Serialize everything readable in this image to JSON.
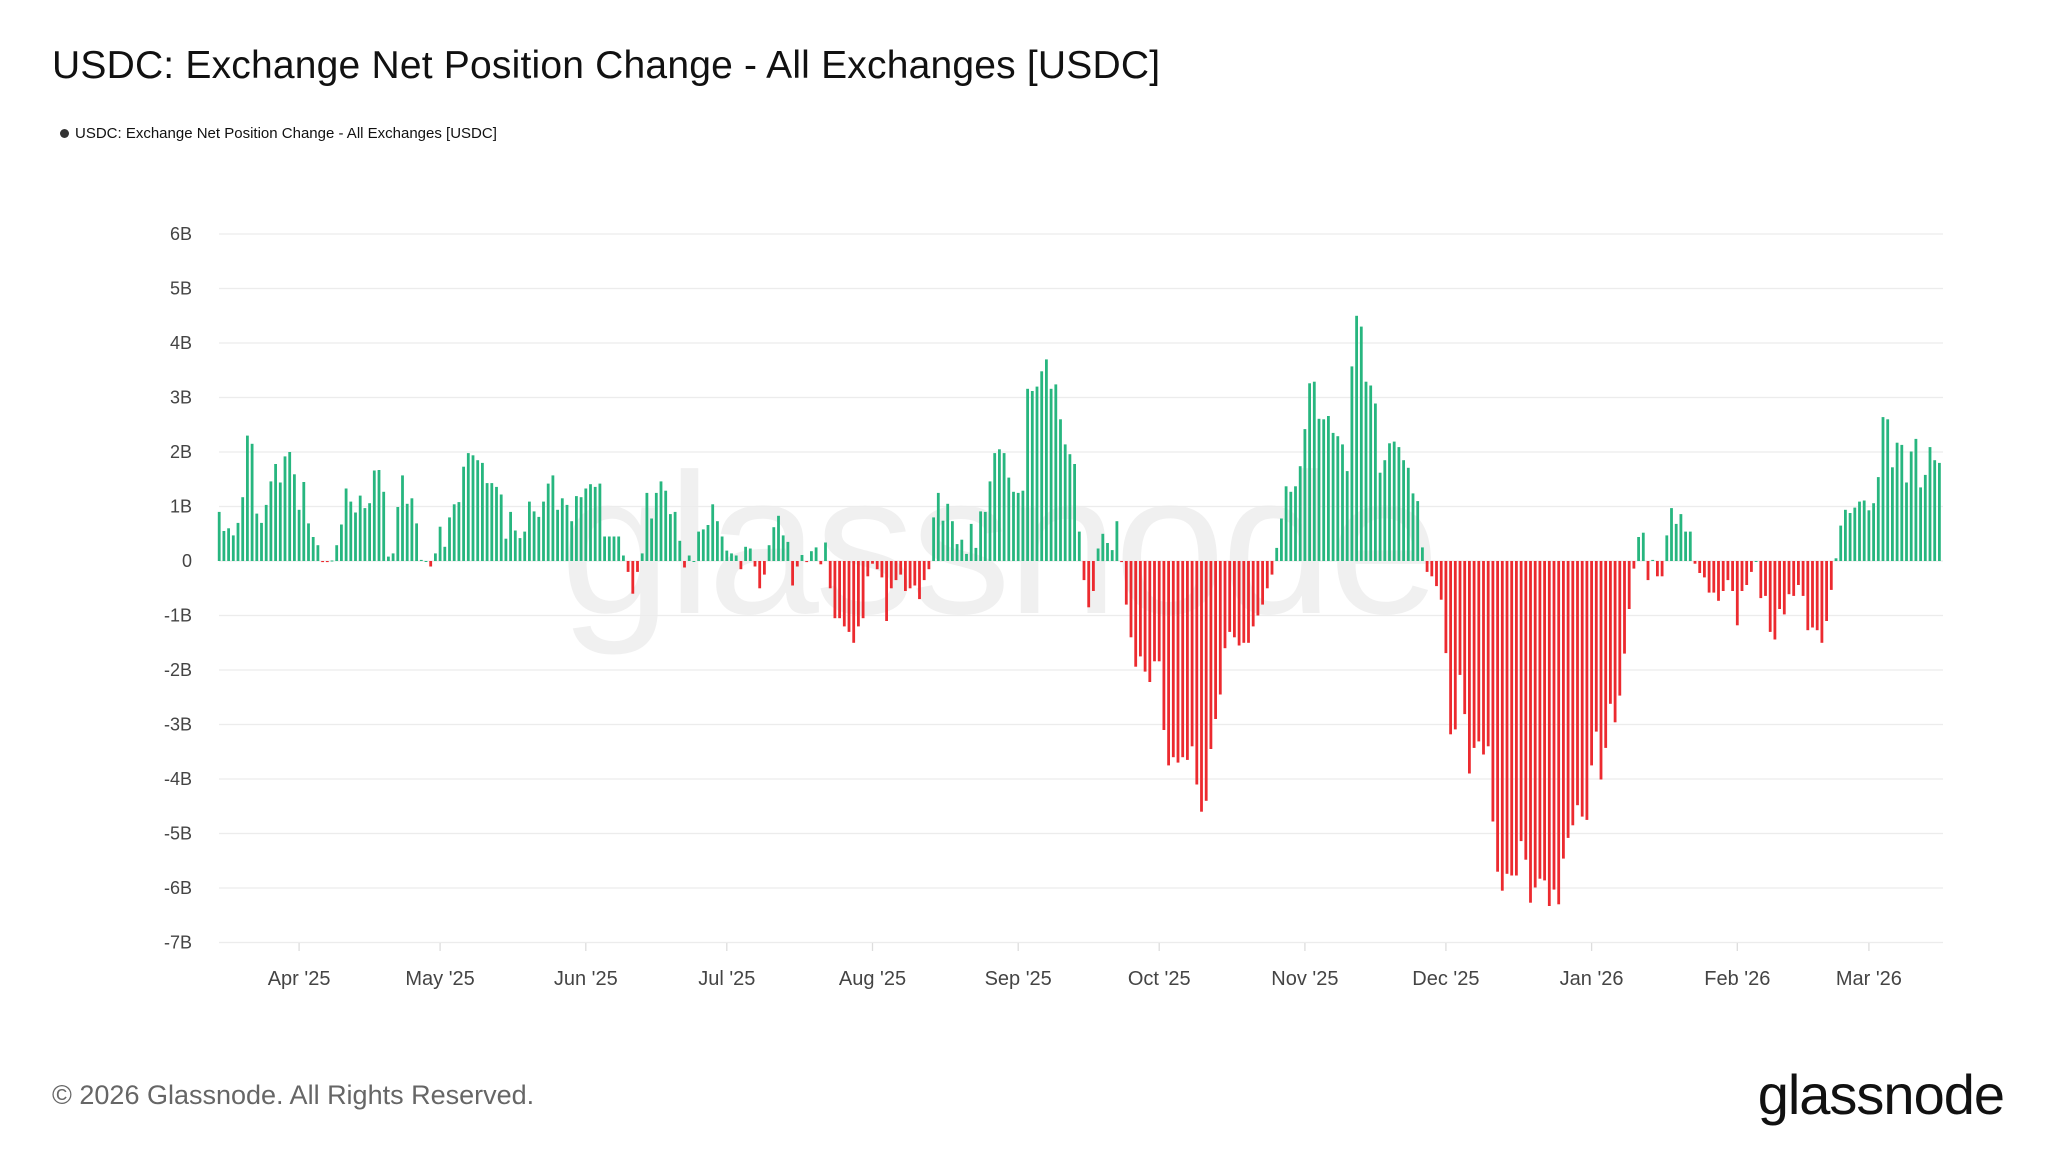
{
  "title": "USDC: Exchange Net Position Change - All Exchanges [USDC]",
  "legend": {
    "label": "USDC: Exchange Net Position Change - All Exchanges [USDC]",
    "dot_color": "#333333"
  },
  "watermark": "glassnode",
  "footer": {
    "copyright": "© 2026 Glassnode. All Rights Reserved.",
    "logo": "glassnode"
  },
  "colors": {
    "positive": "#27b67f",
    "negative": "#ec2a2f",
    "grid": "#ececec"
  },
  "chart_data": {
    "type": "bar",
    "title": "USDC: Exchange Net Position Change - All Exchanges [USDC]",
    "xlabel": "",
    "ylabel": "",
    "ylim": [
      -7,
      6
    ],
    "y_unit": "B",
    "grid": true,
    "legend_position": "top-left",
    "y_ticks": [
      "6B",
      "5B",
      "4B",
      "3B",
      "2B",
      "1B",
      "0",
      "-1B",
      "-2B",
      "-3B",
      "-4B",
      "-5B",
      "-6B",
      "-7B"
    ],
    "y_tick_values": [
      6,
      5,
      4,
      3,
      2,
      1,
      0,
      -1,
      -2,
      -3,
      -4,
      -5,
      -6,
      -7
    ],
    "x_ticks": [
      "Apr '25",
      "May '25",
      "Jun '25",
      "Jul '25",
      "Aug '25",
      "Sep '25",
      "Oct '25",
      "Nov '25",
      "Dec '25",
      "Jan '26",
      "Feb '26",
      "Mar '26"
    ],
    "x_tick_dates": [
      "2025-04-01",
      "2025-05-01",
      "2025-06-01",
      "2025-07-01",
      "2025-08-01",
      "2025-09-01",
      "2025-10-01",
      "2025-11-01",
      "2025-12-01",
      "2026-01-01",
      "2026-02-01",
      "2026-03-01"
    ],
    "series": [
      {
        "name": "USDC: Exchange Net Position Change - All Exchanges [USDC]",
        "values": [
          0.9,
          0.55,
          0.6,
          0.47,
          0.7,
          1.17,
          2.3,
          2.15,
          0.87,
          0.7,
          1.03,
          1.46,
          1.78,
          1.44,
          1.92,
          2.0,
          1.59,
          0.94,
          1.45,
          0.69,
          0.44,
          0.29,
          -0.02,
          -0.02,
          0.01,
          0.29,
          0.67,
          1.33,
          1.09,
          0.89,
          1.2,
          0.97,
          1.06,
          1.66,
          1.67,
          1.27,
          0.08,
          0.14,
          0.99,
          1.57,
          1.05,
          1.15,
          0.69,
          0.02,
          0,
          -0.1,
          0.14,
          0.63,
          0.26,
          0.8,
          1.04,
          1.08,
          1.73,
          1.98,
          1.94,
          1.85,
          1.8,
          1.43,
          1.43,
          1.36,
          1.22,
          0.41,
          0.9,
          0.56,
          0.42,
          0.54,
          1.09,
          0.91,
          0.81,
          1.09,
          1.42,
          1.57,
          0.94,
          1.15,
          1.03,
          0.73,
          1.19,
          1.17,
          1.33,
          1.41,
          1.36,
          1.42,
          0.45,
          0.45,
          0.45,
          0.45,
          0.1,
          -0.2,
          -0.6,
          -0.2,
          0.14,
          1.25,
          0.78,
          1.25,
          1.46,
          1.29,
          0.86,
          0.9,
          0.37,
          -0.12,
          0.1,
          0,
          0.54,
          0.58,
          0.66,
          1.04,
          0.73,
          0.45,
          0.19,
          0.14,
          0.1,
          -0.15,
          0.26,
          0.23,
          -0.1,
          -0.5,
          -0.25,
          0.29,
          0.62,
          0.83,
          0.47,
          0.35,
          -0.45,
          -0.1,
          0.11,
          -0.02,
          0.18,
          0.25,
          -0.06,
          0.34,
          -0.5,
          -1.05,
          -1.05,
          -1.2,
          -1.3,
          -1.5,
          -1.2,
          -1.05,
          -0.28,
          -0.05,
          -0.15,
          -0.3,
          -1.1,
          -0.5,
          -0.35,
          -0.25,
          -0.55,
          -0.5,
          -0.45,
          -0.7,
          -0.35,
          -0.15,
          0.8,
          1.25,
          0.74,
          1.05,
          0.73,
          0.31,
          0.39,
          0.13,
          0.68,
          0.24,
          0.91,
          0.9,
          1.46,
          1.98,
          2.05,
          1.98,
          1.53,
          1.27,
          1.25,
          1.29,
          3.16,
          3.12,
          3.2,
          3.48,
          3.7,
          3.16,
          3.24,
          2.6,
          2.14,
          1.96,
          1.78,
          0.54,
          -0.35,
          -0.85,
          -0.55,
          0.23,
          0.5,
          0.33,
          0.2,
          0.73,
          -0.02,
          -0.8,
          -1.4,
          -1.94,
          -1.75,
          -2.03,
          -2.22,
          -1.84,
          -1.84,
          -3.1,
          -3.75,
          -3.6,
          -3.7,
          -3.6,
          -3.65,
          -3.4,
          -4.1,
          -4.6,
          -4.4,
          -3.45,
          -2.9,
          -2.45,
          -1.6,
          -1.3,
          -1.4,
          -1.55,
          -1.5,
          -1.5,
          -1.2,
          -1.0,
          -0.8,
          -0.5,
          -0.25,
          0.24,
          0.78,
          1.37,
          1.27,
          1.37,
          1.74,
          2.42,
          3.26,
          3.29,
          2.61,
          2.6,
          2.66,
          2.35,
          2.29,
          2.14,
          1.65,
          3.57,
          4.5,
          4.3,
          3.29,
          3.22,
          2.89,
          1.62,
          1.85,
          2.16,
          2.19,
          2.09,
          1.85,
          1.71,
          1.24,
          1.1,
          0.25,
          -0.2,
          -0.28,
          -0.46,
          -0.71,
          -1.69,
          -3.18,
          -3.09,
          -2.09,
          -2.81,
          -3.9,
          -3.43,
          -3.31,
          -3.55,
          -3.4,
          -4.78,
          -5.7,
          -6.05,
          -5.74,
          -5.77,
          -5.77,
          -5.14,
          -5.48,
          -6.27,
          -5.99,
          -5.83,
          -5.86,
          -6.33,
          -6.03,
          -6.3,
          -5.46,
          -5.08,
          -4.85,
          -4.48,
          -4.69,
          -4.75,
          -3.75,
          -3.13,
          -4.01,
          -3.43,
          -2.62,
          -2.96,
          -2.47,
          -1.7,
          -0.88,
          -0.14,
          0.44,
          0.52,
          -0.35,
          0.02,
          -0.28,
          -0.28,
          0.47,
          0.97,
          0.68,
          0.86,
          0.54,
          0.54,
          -0.05,
          -0.22,
          -0.3,
          -0.58,
          -0.58,
          -0.73,
          -0.55,
          -0.35,
          -0.55,
          -1.18,
          -0.55,
          -0.44,
          -0.2,
          0,
          -0.68,
          -0.64,
          -1.3,
          -1.44,
          -0.88,
          -0.98,
          -0.61,
          -0.64,
          -0.44,
          -0.64,
          -1.27,
          -1.22,
          -1.27,
          -1.5,
          -1.1,
          -0.53,
          0.05,
          0.65,
          0.94,
          0.88,
          0.98,
          1.09,
          1.11,
          0.93,
          1.06,
          1.54,
          2.64,
          2.6,
          1.72,
          2.17,
          2.13,
          1.44,
          2.01,
          2.24,
          1.35,
          1.58,
          2.09,
          1.85,
          1.8
        ]
      }
    ],
    "x_range": [
      "2025-03-15",
      "2026-03-15"
    ],
    "x_interval": "daily"
  }
}
